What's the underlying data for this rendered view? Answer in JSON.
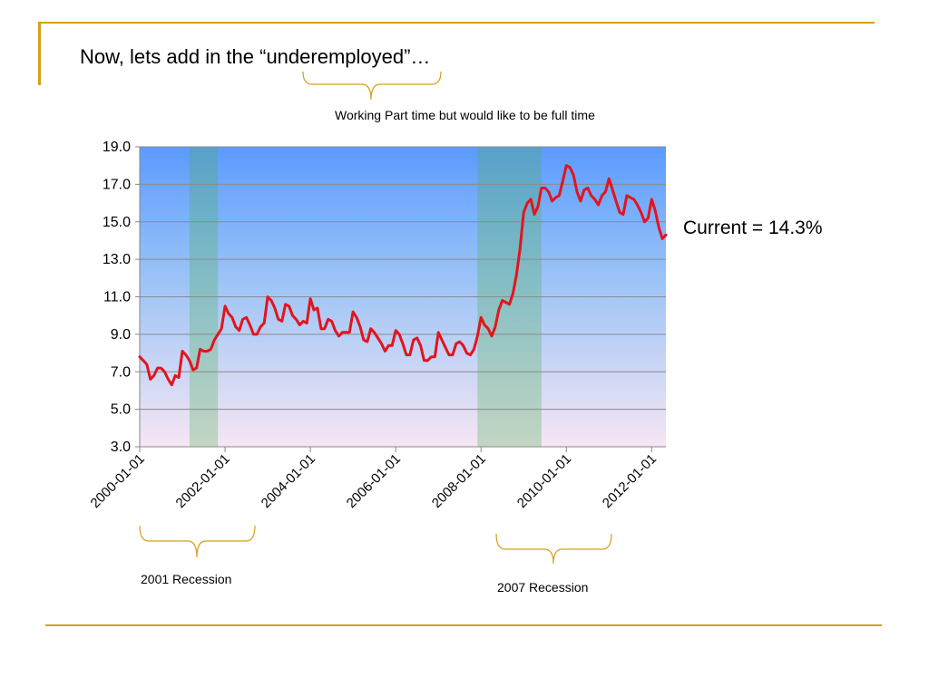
{
  "slide": {
    "title": "Now, lets add in the “underemployed”…",
    "accent_color": "#d4a017"
  },
  "annotations": {
    "underemployed_note": "Working Part time but would like to be full time",
    "recession_2001": "2001 Recession",
    "recession_2007": "2007 Recession",
    "current": "Current = 14.3%"
  },
  "chart_data": {
    "type": "line",
    "series": [
      {
        "color": "#e3141c",
        "x": [
          "2000-01",
          "2000-02",
          "2000-03",
          "2000-04",
          "2000-05",
          "2000-06",
          "2000-07",
          "2000-08",
          "2000-09",
          "2000-10",
          "2000-11",
          "2000-12",
          "2001-01",
          "2001-02",
          "2001-03",
          "2001-04",
          "2001-05",
          "2001-06",
          "2001-07",
          "2001-08",
          "2001-09",
          "2001-10",
          "2001-11",
          "2001-12",
          "2002-01",
          "2002-02",
          "2002-03",
          "2002-04",
          "2002-05",
          "2002-06",
          "2002-07",
          "2002-08",
          "2002-09",
          "2002-10",
          "2002-11",
          "2002-12",
          "2003-01",
          "2003-02",
          "2003-03",
          "2003-04",
          "2003-05",
          "2003-06",
          "2003-07",
          "2003-08",
          "2003-09",
          "2003-10",
          "2003-11",
          "2003-12",
          "2004-01",
          "2004-02",
          "2004-03",
          "2004-04",
          "2004-05",
          "2004-06",
          "2004-07",
          "2004-08",
          "2004-09",
          "2004-10",
          "2004-11",
          "2004-12",
          "2005-01",
          "2005-02",
          "2005-03",
          "2005-04",
          "2005-05",
          "2005-06",
          "2005-07",
          "2005-08",
          "2005-09",
          "2005-10",
          "2005-11",
          "2005-12",
          "2006-01",
          "2006-02",
          "2006-03",
          "2006-04",
          "2006-05",
          "2006-06",
          "2006-07",
          "2006-08",
          "2006-09",
          "2006-10",
          "2006-11",
          "2006-12",
          "2007-01",
          "2007-02",
          "2007-03",
          "2007-04",
          "2007-05",
          "2007-06",
          "2007-07",
          "2007-08",
          "2007-09",
          "2007-10",
          "2007-11",
          "2007-12",
          "2008-01",
          "2008-02",
          "2008-03",
          "2008-04",
          "2008-05",
          "2008-06",
          "2008-07",
          "2008-08",
          "2008-09",
          "2008-10",
          "2008-11",
          "2008-12",
          "2009-01",
          "2009-02",
          "2009-03",
          "2009-04",
          "2009-05",
          "2009-06",
          "2009-07",
          "2009-08",
          "2009-09",
          "2009-10",
          "2009-11",
          "2009-12",
          "2010-01",
          "2010-02",
          "2010-03",
          "2010-04",
          "2010-05",
          "2010-06",
          "2010-07",
          "2010-08",
          "2010-09",
          "2010-10",
          "2010-11",
          "2010-12",
          "2011-01",
          "2011-02",
          "2011-03",
          "2011-04",
          "2011-05",
          "2011-06",
          "2011-07",
          "2011-08",
          "2011-09",
          "2011-10",
          "2011-11",
          "2011-12",
          "2012-01",
          "2012-02",
          "2012-03",
          "2012-04",
          "2012-05"
        ],
        "values": [
          7.8,
          7.6,
          7.4,
          6.6,
          6.8,
          7.2,
          7.2,
          7.0,
          6.6,
          6.3,
          6.8,
          6.7,
          8.1,
          7.9,
          7.6,
          7.1,
          7.2,
          8.2,
          8.1,
          8.1,
          8.2,
          8.7,
          9.0,
          9.3,
          10.5,
          10.1,
          9.9,
          9.4,
          9.2,
          9.8,
          9.9,
          9.5,
          9.0,
          9.0,
          9.4,
          9.6,
          11.0,
          10.8,
          10.4,
          9.8,
          9.7,
          10.6,
          10.5,
          10.0,
          9.8,
          9.5,
          9.7,
          9.6,
          10.9,
          10.3,
          10.4,
          9.3,
          9.3,
          9.8,
          9.7,
          9.2,
          8.9,
          9.1,
          9.1,
          9.1,
          10.2,
          9.9,
          9.4,
          8.7,
          8.6,
          9.3,
          9.1,
          8.8,
          8.5,
          8.1,
          8.4,
          8.4,
          9.2,
          9.0,
          8.5,
          7.9,
          7.9,
          8.7,
          8.8,
          8.4,
          7.6,
          7.6,
          7.8,
          7.8,
          9.1,
          8.7,
          8.3,
          7.9,
          7.9,
          8.5,
          8.6,
          8.4,
          8.0,
          7.9,
          8.2,
          8.9,
          9.9,
          9.5,
          9.3,
          8.9,
          9.4,
          10.3,
          10.8,
          10.7,
          10.6,
          11.2,
          12.2,
          13.6,
          15.5,
          16.0,
          16.2,
          15.4,
          15.8,
          16.8,
          16.8,
          16.6,
          16.1,
          16.3,
          16.4,
          17.2,
          18.0,
          17.9,
          17.5,
          16.6,
          16.1,
          16.7,
          16.8,
          16.4,
          16.2,
          15.9,
          16.4,
          16.6,
          17.3,
          16.7,
          16.1,
          15.5,
          15.4,
          16.4,
          16.3,
          16.2,
          15.9,
          15.5,
          15.0,
          15.2,
          16.2,
          15.6,
          14.7,
          14.1,
          14.3
        ]
      }
    ],
    "x_tick_labels": [
      "2000-01-01",
      "2002-01-01",
      "2004-01-01",
      "2006-01-01",
      "2008-01-01",
      "2010-01-01",
      "2012-01-01"
    ],
    "y_tick_labels": [
      "3.0",
      "5.0",
      "7.0",
      "9.0",
      "11.0",
      "13.0",
      "15.0",
      "17.0",
      "19.0"
    ],
    "ylim": [
      3.0,
      19.0
    ],
    "xlim": [
      "2000-01",
      "2012-05"
    ],
    "grid": "horizontal",
    "legend": "none",
    "recession_shading": [
      {
        "start": "2001-03",
        "end": "2001-11",
        "color": "#4caf50"
      },
      {
        "start": "2007-12",
        "end": "2009-06",
        "color": "#4caf50"
      }
    ],
    "plot_background": {
      "top": "#5b9bff",
      "bottom": "#f6e6f4"
    }
  }
}
